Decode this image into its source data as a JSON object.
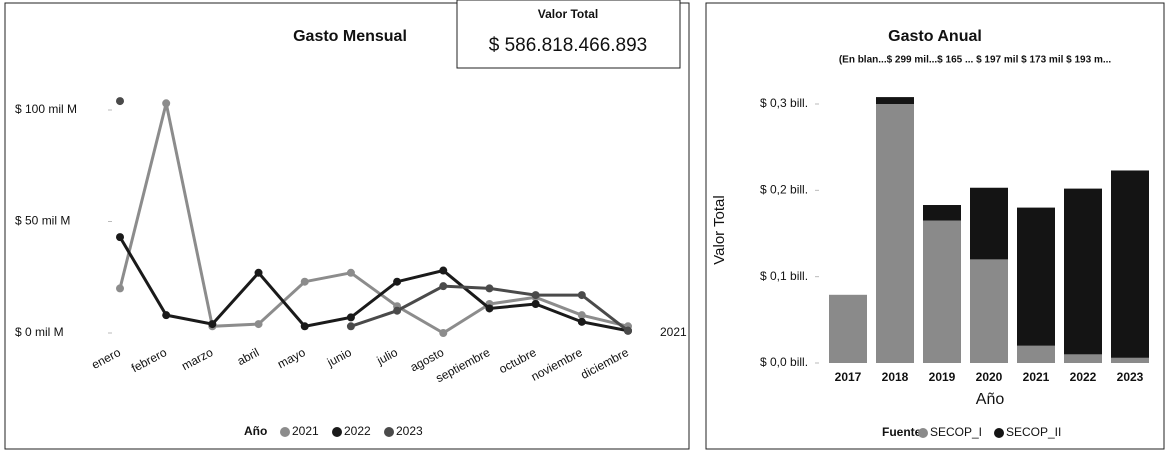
{
  "card": {
    "title": "Valor Total",
    "value": "$ 586.818.466.893"
  },
  "chart_data": [
    {
      "type": "line",
      "title": "Gasto Mensual",
      "categories": [
        "enero",
        "febrero",
        "marzo",
        "abril",
        "mayo",
        "junio",
        "julio",
        "agosto",
        "septiembre",
        "octubre",
        "noviembre",
        "diciembre"
      ],
      "series": [
        {
          "name": "2021",
          "color": "#8c8c8c",
          "values": [
            20,
            103,
            3,
            4,
            23,
            27,
            12,
            0,
            13,
            16,
            8,
            3
          ]
        },
        {
          "name": "2022",
          "color": "#1a1a1a",
          "values": [
            43,
            8,
            4,
            27,
            3,
            7,
            23,
            28,
            11,
            13,
            5,
            1
          ]
        },
        {
          "name": "2023",
          "color": "#4a4a4a",
          "values": [
            104,
            null,
            null,
            null,
            null,
            3,
            10,
            21,
            20,
            17,
            17,
            1
          ]
        }
      ],
      "ylim": [
        0,
        110
      ],
      "yticks": [
        {
          "value": 0,
          "label": "$ 0 mil M"
        },
        {
          "value": 50,
          "label": "$ 50 mil M"
        },
        {
          "value": 100,
          "label": "$ 100 mil M"
        }
      ],
      "legend_title": "Año",
      "annotation": "2021"
    },
    {
      "type": "bar",
      "stacked": true,
      "title": "Gasto Anual",
      "subtitle": "(En blan...$ 299 mil...$ 165 ... $ 197 mil $ 173 mil $ 193 m...",
      "categories": [
        "2017",
        "2018",
        "2019",
        "2020",
        "2021",
        "2022",
        "2023"
      ],
      "series": [
        {
          "name": "SECOP_I",
          "color": "#8a8a8a",
          "values": [
            0.079,
            0.3,
            0.165,
            0.12,
            0.02,
            0.01,
            0.006
          ]
        },
        {
          "name": "SECOP_II",
          "color": "#141414",
          "values": [
            0,
            0.008,
            0.018,
            0.083,
            0.16,
            0.192,
            0.217
          ]
        }
      ],
      "ylim": [
        0,
        0.31
      ],
      "yticks": [
        {
          "value": 0,
          "label": "$ 0,0 bill."
        },
        {
          "value": 0.1,
          "label": "$ 0,1 bill."
        },
        {
          "value": 0.2,
          "label": "$ 0,2 bill."
        },
        {
          "value": 0.3,
          "label": "$ 0,3 bill."
        }
      ],
      "ylabel": "Valor Total",
      "xlabel": "Año",
      "legend_title": "Fuente"
    }
  ]
}
